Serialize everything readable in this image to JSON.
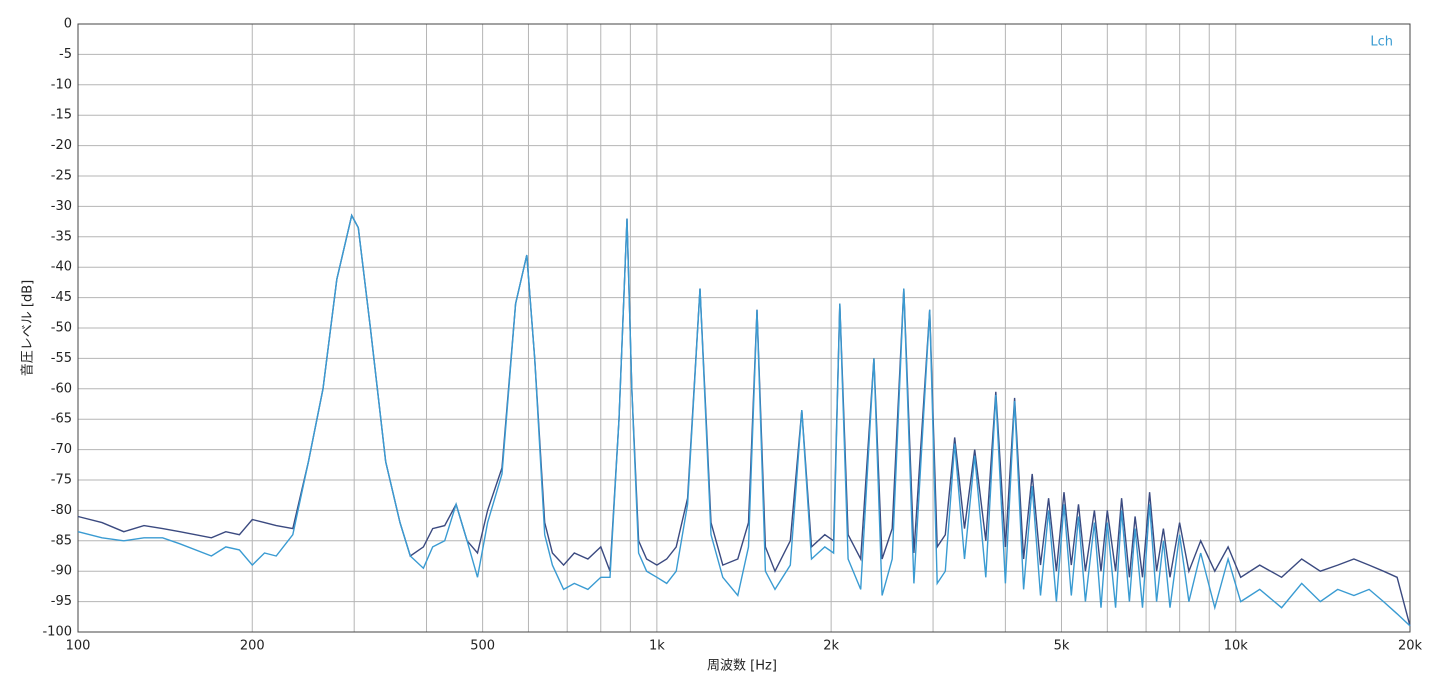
{
  "chart_data": {
    "type": "line",
    "legend": "Lch",
    "xlabel": "周波数 [Hz]",
    "ylabel": "音圧レベル [dB]",
    "xscale": "log",
    "grid": true,
    "xlim": [
      100,
      20000
    ],
    "ylim": [
      -100,
      0
    ],
    "xticks": [
      100,
      200,
      500,
      {
        "value": 1000,
        "label": "1k"
      },
      {
        "value": 2000,
        "label": "2k"
      },
      {
        "value": 5000,
        "label": "5k"
      },
      {
        "value": 10000,
        "label": "10k"
      },
      {
        "value": 20000,
        "label": "20k"
      }
    ],
    "xminorticks": [
      300,
      400,
      600,
      700,
      800,
      900,
      3000,
      4000,
      6000,
      7000,
      8000,
      9000
    ],
    "yticks": [
      0,
      -5,
      -10,
      -15,
      -20,
      -25,
      -30,
      -35,
      -40,
      -45,
      -50,
      -55,
      -60,
      -65,
      -70,
      -75,
      -80,
      -85,
      -90,
      -95,
      -100
    ],
    "x": [
      100,
      110,
      120,
      130,
      140,
      150,
      170,
      180,
      190,
      200,
      210,
      220,
      235,
      250,
      265,
      280,
      297,
      305,
      320,
      340,
      360,
      375,
      395,
      410,
      430,
      450,
      470,
      490,
      510,
      540,
      570,
      596,
      615,
      640,
      660,
      690,
      720,
      760,
      800,
      830,
      860,
      888,
      905,
      930,
      960,
      1000,
      1040,
      1080,
      1130,
      1187,
      1240,
      1300,
      1380,
      1440,
      1489,
      1540,
      1600,
      1700,
      1780,
      1850,
      1950,
      2020,
      2070,
      2140,
      2250,
      2371,
      2450,
      2550,
      2670,
      2780,
      2960,
      3050,
      3150,
      3270,
      3400,
      3540,
      3700,
      3850,
      4000,
      4150,
      4300,
      4450,
      4600,
      4750,
      4900,
      5050,
      5200,
      5350,
      5500,
      5700,
      5850,
      6000,
      6200,
      6350,
      6550,
      6700,
      6900,
      7100,
      7300,
      7500,
      7700,
      8000,
      8300,
      8700,
      9200,
      9700,
      10200,
      11000,
      12000,
      13000,
      14000,
      15000,
      16000,
      17000,
      18000,
      19000,
      20000
    ],
    "series": [
      {
        "color": "#3b4a80",
        "values": [
          -81,
          -82,
          -83.5,
          -82.5,
          -83,
          -83.5,
          -84.5,
          -83.5,
          -84,
          -81.5,
          -82,
          -82.5,
          -83,
          -72,
          -60,
          -42,
          -31.5,
          -33.5,
          -50,
          -72,
          -82,
          -87.5,
          -86,
          -83,
          -82.5,
          -79,
          -85,
          -87,
          -80,
          -73,
          -46,
          -38,
          -55,
          -82,
          -87,
          -89,
          -87,
          -88,
          -86,
          -90,
          -65,
          -32,
          -60,
          -85,
          -88,
          -89,
          -88,
          -86,
          -78,
          -43.5,
          -82,
          -89,
          -88,
          -82,
          -47,
          -86,
          -90,
          -85,
          -63.5,
          -86,
          -84,
          -85,
          -46,
          -84,
          -88,
          -55,
          -88,
          -83,
          -43.5,
          -87,
          -47,
          -86,
          -84,
          -68,
          -83,
          -70,
          -85,
          -60.5,
          -86,
          -61.5,
          -88,
          -74,
          -89,
          -78,
          -90,
          -77,
          -89,
          -79,
          -90,
          -80,
          -90,
          -80,
          -90,
          -78,
          -91,
          -81,
          -91,
          -77,
          -90,
          -83,
          -91,
          -82,
          -90,
          -85,
          -90,
          -86,
          -91,
          -89,
          -91,
          -88,
          -90,
          -89,
          -88,
          -89,
          -90,
          -91,
          -99
        ]
      },
      {
        "color": "#3a9bd2",
        "values": [
          -83.5,
          -84.5,
          -85,
          -84.5,
          -84.5,
          -85.5,
          -87.5,
          -86,
          -86.5,
          -89,
          -87,
          -87.5,
          -84,
          -72,
          -60,
          -42,
          -31.5,
          -33.5,
          -50,
          -72,
          -82,
          -87.5,
          -89.5,
          -86,
          -85,
          -79,
          -85,
          -91,
          -82,
          -74,
          -46,
          -38,
          -55,
          -84,
          -89,
          -93,
          -92,
          -93,
          -91,
          -91,
          -65,
          -32,
          -60,
          -87,
          -90,
          -91,
          -92,
          -90,
          -79,
          -43.5,
          -84,
          -91,
          -94,
          -86,
          -47,
          -90,
          -93,
          -89,
          -63.5,
          -88,
          -86,
          -87,
          -46,
          -88,
          -93,
          -55,
          -94,
          -88,
          -43.5,
          -92,
          -47,
          -92,
          -90,
          -69,
          -88,
          -71,
          -91,
          -61,
          -92,
          -62,
          -93,
          -76,
          -94,
          -80,
          -95,
          -79,
          -94,
          -81,
          -95,
          -82,
          -96,
          -82,
          -96,
          -80,
          -95,
          -83,
          -96,
          -79,
          -95,
          -85,
          -96,
          -84,
          -95,
          -87,
          -96,
          -88,
          -95,
          -93,
          -96,
          -92,
          -95,
          -93,
          -94,
          -93,
          -95,
          -97,
          -99
        ]
      }
    ]
  }
}
